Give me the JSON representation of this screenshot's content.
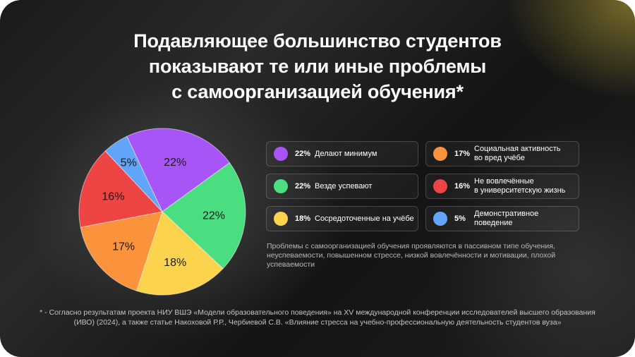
{
  "title": {
    "line1": "Подавляющее большинство студентов",
    "line2": "показывают те или иные проблемы",
    "line3": "с самоорганизацией обучения*"
  },
  "chart_data": {
    "type": "pie",
    "slices": [
      {
        "value": 22,
        "label": "22%",
        "name": "Делают минимум",
        "color": "#a855f7"
      },
      {
        "value": 22,
        "label": "22%",
        "name": "Везде успевают",
        "color": "#4ade80"
      },
      {
        "value": 18,
        "label": "18%",
        "name": "Сосредоточенные на учёбе",
        "color": "#fcd34d"
      },
      {
        "value": 17,
        "label": "17%",
        "name": "Социальная активность во вред учёбе",
        "color": "#fb923c"
      },
      {
        "value": 16,
        "label": "16%",
        "name": "Не вовлечённые в университетскую жизнь",
        "color": "#ef4444"
      },
      {
        "value": 5,
        "label": "5%",
        "name": "Демонстративное поведение",
        "color": "#60a5fa"
      }
    ]
  },
  "legend": [
    {
      "pct": "22%",
      "line1": "Делают минимум",
      "line2": "",
      "color": "#a855f7"
    },
    {
      "pct": "17%",
      "line1": "Социальная активность",
      "line2": "во вред учёбе",
      "color": "#fb923c"
    },
    {
      "pct": "22%",
      "line1": "Везде успевают",
      "line2": "",
      "color": "#4ade80"
    },
    {
      "pct": "16%",
      "line1": "Не вовлечённые",
      "line2": "в университетскую жизнь",
      "color": "#ef4444"
    },
    {
      "pct": "18%",
      "line1": "Сосредоточенные на учёбе",
      "line2": "",
      "color": "#fcd34d"
    },
    {
      "pct": "5%",
      "line1": "Демонстративное поведение",
      "line2": "",
      "color": "#60a5fa"
    }
  ],
  "note": "Проблемы с самоорганизацией обучения проявляются в пассивном типе обучения, неуспеваемости, повышенном стрессе, низкой вовлечённости и мотивации, плохой успеваемости",
  "footnote": {
    "line1": "* - Согласно результатам проекта НИУ ВШЭ «Модели образовательного поведения» на XV международной конференции исследователей высшего образования",
    "line2": "(ИВО) (2024), а также статье Накоховой Р.Р., Чербиевой С.В. «Влияние стресса на учебно-профессиональную деятельность студентов вуза»"
  }
}
